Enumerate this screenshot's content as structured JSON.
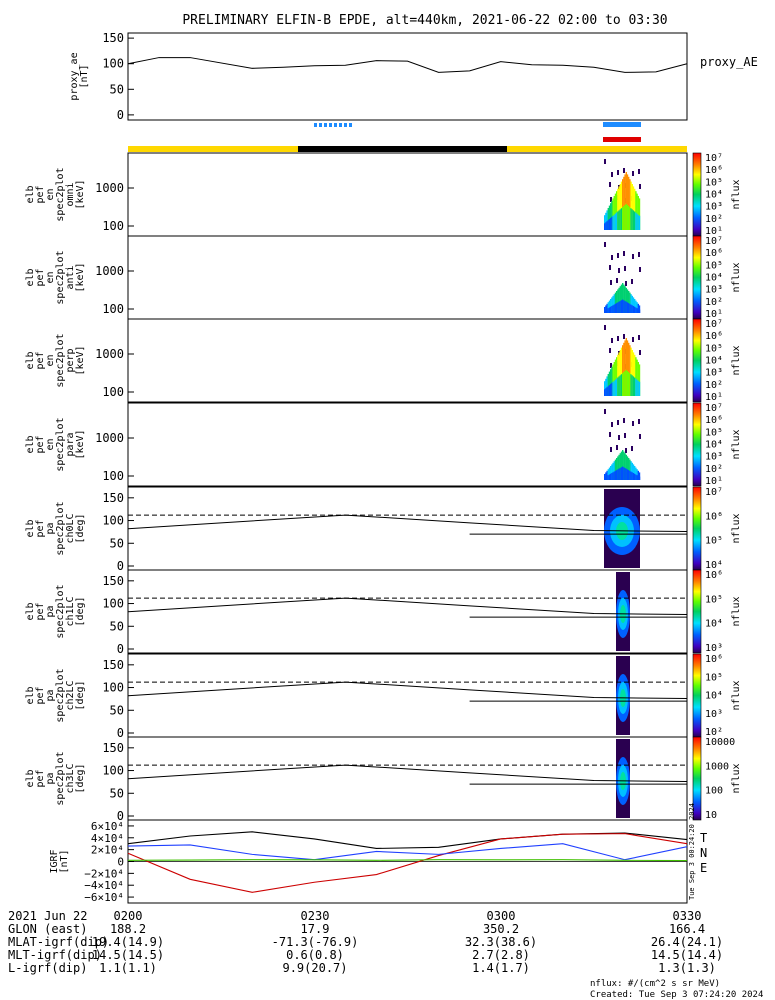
{
  "title": "PRELIMINARY ELFIN-B EPDE, alt=440km, 2021-06-22 02:00 to 03:30",
  "chart_data": [
    {
      "type": "line",
      "id": "proxy_ae",
      "ylabel_lines": [
        "proxy_ae",
        "[nT]"
      ],
      "legend": "proxy_AE",
      "ylim": [
        -10,
        160
      ],
      "yticks": [
        0,
        50,
        100,
        150
      ],
      "x_minutes": [
        0,
        5,
        10,
        20,
        25,
        30,
        35,
        40,
        45,
        50,
        55,
        60,
        65,
        70,
        75,
        80,
        85,
        90
      ],
      "values": [
        100,
        112,
        112,
        91,
        93,
        96,
        97,
        106,
        105,
        83,
        86,
        104,
        98,
        97,
        93,
        83,
        84,
        100
      ]
    },
    {
      "type": "heatmap",
      "id": "en_omni",
      "ylabel_lines": [
        "elb",
        "pef",
        "en",
        "spec2plot",
        "omni",
        "[keV]"
      ],
      "yticks": [
        "100",
        "1000"
      ],
      "colorbar_title": "nflux",
      "colorbar_ticks": [
        "10⁷",
        "10⁶",
        "10⁵",
        "10⁴",
        "10³",
        "10²",
        "10¹"
      ]
    },
    {
      "type": "heatmap",
      "id": "en_anti",
      "ylabel_lines": [
        "elb",
        "pef",
        "en",
        "spec2plot",
        "anti",
        "[keV]"
      ],
      "yticks": [
        "100",
        "1000"
      ],
      "colorbar_title": "nflux",
      "colorbar_ticks": [
        "10⁷",
        "10⁶",
        "10⁵",
        "10⁴",
        "10³",
        "10²",
        "10¹"
      ]
    },
    {
      "type": "heatmap",
      "id": "en_perp",
      "ylabel_lines": [
        "elb",
        "pef",
        "en",
        "spec2plot",
        "perp",
        "[keV]"
      ],
      "yticks": [
        "100",
        "1000"
      ],
      "colorbar_title": "nflux",
      "colorbar_ticks": [
        "10⁷",
        "10⁶",
        "10⁵",
        "10⁴",
        "10³",
        "10²",
        "10¹"
      ]
    },
    {
      "type": "heatmap",
      "id": "en_para",
      "ylabel_lines": [
        "elb",
        "pef",
        "en",
        "spec2plot",
        "para",
        "[keV]"
      ],
      "yticks": [
        "100",
        "1000"
      ],
      "colorbar_title": "nflux",
      "colorbar_ticks": [
        "10⁷",
        "10⁶",
        "10⁵",
        "10⁴",
        "10³",
        "10²",
        "10¹"
      ]
    },
    {
      "type": "heatmap",
      "id": "pa_ch0",
      "ylabel_lines": [
        "elb",
        "pef",
        "pa",
        "spec2plot",
        "ch0LC",
        "[deg]"
      ],
      "yticks": [
        "0",
        "50",
        "100",
        "150"
      ],
      "colorbar_title": "nflux",
      "colorbar_ticks": [
        "10⁷",
        "10⁶",
        "10⁵",
        "10⁴"
      ]
    },
    {
      "type": "heatmap",
      "id": "pa_ch1",
      "ylabel_lines": [
        "elb",
        "pef",
        "pa",
        "spec2plot",
        "ch1LC",
        "[deg]"
      ],
      "yticks": [
        "0",
        "50",
        "100",
        "150"
      ],
      "colorbar_title": "nflux",
      "colorbar_ticks": [
        "10⁶",
        "10⁵",
        "10⁴",
        "10³"
      ]
    },
    {
      "type": "heatmap",
      "id": "pa_ch2",
      "ylabel_lines": [
        "elb",
        "pef",
        "pa",
        "spec2plot",
        "ch2LC",
        "[deg]"
      ],
      "yticks": [
        "0",
        "50",
        "100",
        "150"
      ],
      "colorbar_title": "nflux",
      "colorbar_ticks": [
        "10⁶",
        "10⁵",
        "10⁴",
        "10³",
        "10²"
      ]
    },
    {
      "type": "heatmap",
      "id": "pa_ch3",
      "ylabel_lines": [
        "elb",
        "pef",
        "pa",
        "spec2plot",
        "ch3LC",
        "[deg]"
      ],
      "yticks": [
        "0",
        "50",
        "100",
        "150"
      ],
      "colorbar_title": "nflux",
      "colorbar_ticks": [
        "10000",
        "1000",
        "100",
        "10"
      ]
    },
    {
      "type": "line",
      "id": "igrf",
      "ylabel_lines": [
        "IGRF",
        "[nT]"
      ],
      "yticks": [
        "6×10⁴",
        "4×10⁴",
        "2×10⁴",
        "0",
        "−2×10⁴",
        "−4×10⁴",
        "−6×10⁴"
      ],
      "legend": [
        "T",
        "N",
        "E"
      ],
      "ylim": [
        -70000,
        70000
      ],
      "x_minutes": [
        0,
        10,
        20,
        30,
        40,
        50,
        60,
        70,
        80,
        90
      ],
      "series": [
        {
          "name": "T",
          "color": "#000000",
          "values": [
            30000,
            43000,
            50000,
            38000,
            22000,
            24000,
            38000,
            46000,
            48000,
            37000
          ]
        },
        {
          "name": "N",
          "color": "#cc0000",
          "values": [
            14000,
            -30000,
            -52000,
            -35000,
            -22000,
            10000,
            38000,
            46000,
            47000,
            30000
          ]
        },
        {
          "name": "E",
          "color": "#2040ff",
          "values": [
            26000,
            28000,
            12000,
            3000,
            17000,
            12000,
            22000,
            30000,
            3000,
            25000
          ]
        },
        {
          "name": "",
          "color": "#40c000",
          "values": [
            2000,
            2500,
            3000,
            2800,
            2000,
            3000,
            2800,
            3000,
            2000,
            1500
          ]
        }
      ]
    }
  ],
  "time_axis": {
    "date": "2021 Jun 22",
    "ticks": [
      "0200",
      "0230",
      "0300",
      "0330"
    ],
    "rows": [
      {
        "label": "GLON (east)",
        "values": [
          "188.2",
          "17.9",
          "350.2",
          "166.4"
        ]
      },
      {
        "label": "MLAT-igrf(dip)",
        "values": [
          "19.4(14.9)",
          "-71.3(-76.9)",
          "32.3(38.6)",
          "26.4(24.1)"
        ]
      },
      {
        "label": "MLT-igrf(dip)",
        "values": [
          "14.5(14.5)",
          "0.6(0.8)",
          "2.7(2.8)",
          "14.5(14.4)"
        ]
      },
      {
        "label": "L-igrf(dip)",
        "values": [
          "1.1(1.1)",
          "9.9(20.7)",
          "1.4(1.7)",
          "1.3(1.3)"
        ]
      }
    ]
  },
  "footer": {
    "units": "nflux: #/(cm^2 s sr MeV)",
    "created": "Created: Tue Sep  3 07:24:20 2024",
    "side_stamp": "Tue Sep  3 00:24:20 2024"
  }
}
